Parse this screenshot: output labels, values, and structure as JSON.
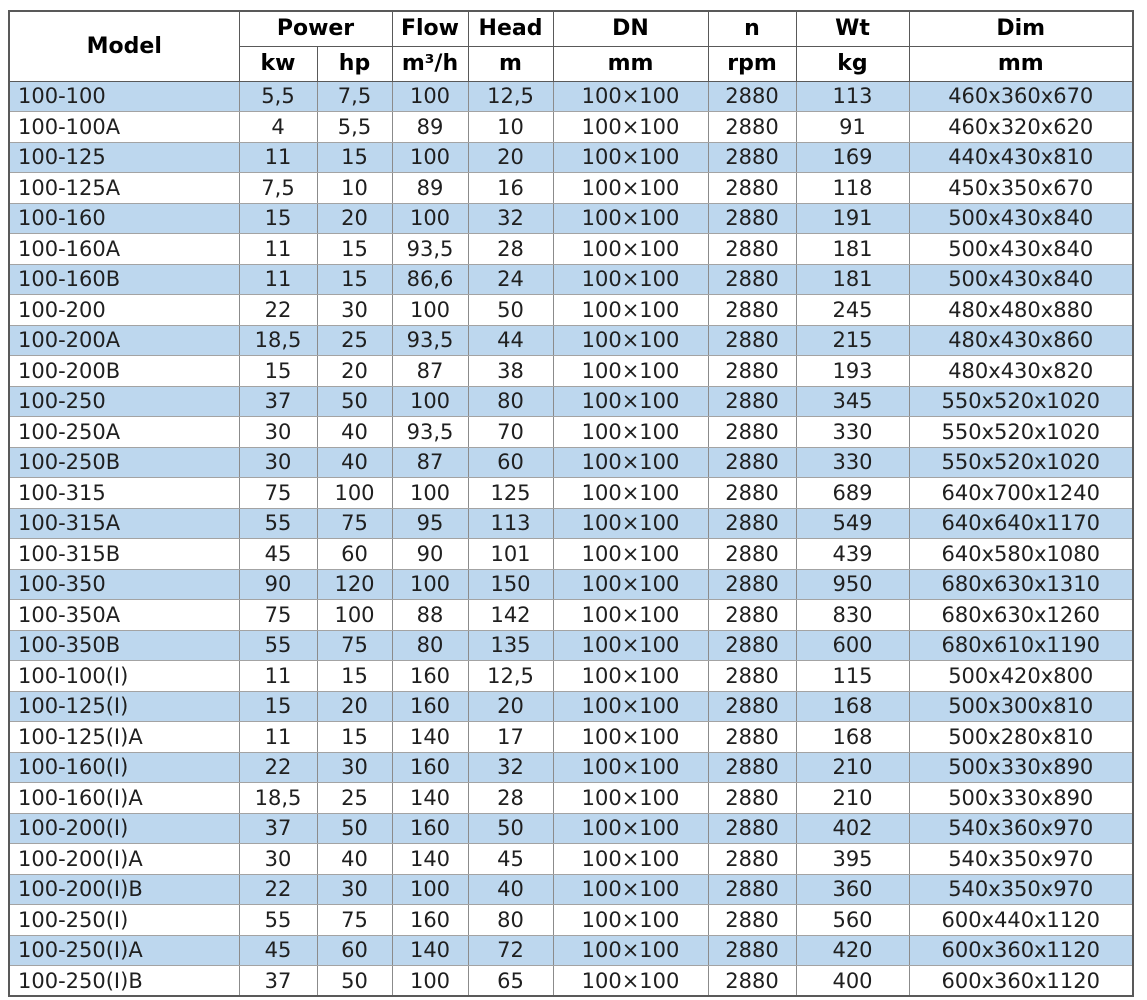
{
  "table": {
    "header": {
      "model": "Model",
      "power": "Power",
      "power_kw": "kw",
      "power_hp": "hp",
      "flow": "Flow",
      "flow_unit": "m³/h",
      "head": "Head",
      "head_unit": "m",
      "dn": "DN",
      "dn_unit": "mm",
      "n": "n",
      "n_unit": "rpm",
      "wt": "Wt",
      "wt_unit": "kg",
      "dim": "Dim",
      "dim_unit": "mm"
    },
    "columns": [
      "model",
      "power-kw",
      "power-hp",
      "flow",
      "head",
      "dn",
      "n",
      "wt",
      "dim"
    ],
    "rows": [
      [
        "100-100",
        "5,5",
        "7,5",
        "100",
        "12,5",
        "100×100",
        "2880",
        "113",
        "460x360x670"
      ],
      [
        "100-100A",
        "4",
        "5,5",
        "89",
        "10",
        "100×100",
        "2880",
        "91",
        "460x320x620"
      ],
      [
        "100-125",
        "11",
        "15",
        "100",
        "20",
        "100×100",
        "2880",
        "169",
        "440x430x810"
      ],
      [
        "100-125A",
        "7,5",
        "10",
        "89",
        "16",
        "100×100",
        "2880",
        "118",
        "450x350x670"
      ],
      [
        "100-160",
        "15",
        "20",
        "100",
        "32",
        "100×100",
        "2880",
        "191",
        "500x430x840"
      ],
      [
        "100-160A",
        "11",
        "15",
        "93,5",
        "28",
        "100×100",
        "2880",
        "181",
        "500x430x840"
      ],
      [
        "100-160B",
        "11",
        "15",
        "86,6",
        "24",
        "100×100",
        "2880",
        "181",
        "500x430x840"
      ],
      [
        "100-200",
        "22",
        "30",
        "100",
        "50",
        "100×100",
        "2880",
        "245",
        "480x480x880"
      ],
      [
        "100-200A",
        "18,5",
        "25",
        "93,5",
        "44",
        "100×100",
        "2880",
        "215",
        "480x430x860"
      ],
      [
        "100-200B",
        "15",
        "20",
        "87",
        "38",
        "100×100",
        "2880",
        "193",
        "480x430x820"
      ],
      [
        "100-250",
        "37",
        "50",
        "100",
        "80",
        "100×100",
        "2880",
        "345",
        "550x520x1020"
      ],
      [
        "100-250A",
        "30",
        "40",
        "93,5",
        "70",
        "100×100",
        "2880",
        "330",
        "550x520x1020"
      ],
      [
        "100-250B",
        "30",
        "40",
        "87",
        "60",
        "100×100",
        "2880",
        "330",
        "550x520x1020"
      ],
      [
        "100-315",
        "75",
        "100",
        "100",
        "125",
        "100×100",
        "2880",
        "689",
        "640x700x1240"
      ],
      [
        "100-315A",
        "55",
        "75",
        "95",
        "113",
        "100×100",
        "2880",
        "549",
        "640x640x1170"
      ],
      [
        "100-315B",
        "45",
        "60",
        "90",
        "101",
        "100×100",
        "2880",
        "439",
        "640x580x1080"
      ],
      [
        "100-350",
        "90",
        "120",
        "100",
        "150",
        "100×100",
        "2880",
        "950",
        "680x630x1310"
      ],
      [
        "100-350A",
        "75",
        "100",
        "88",
        "142",
        "100×100",
        "2880",
        "830",
        "680x630x1260"
      ],
      [
        "100-350B",
        "55",
        "75",
        "80",
        "135",
        "100×100",
        "2880",
        "600",
        "680x610x1190"
      ],
      [
        "100-100(I)",
        "11",
        "15",
        "160",
        "12,5",
        "100×100",
        "2880",
        "115",
        "500x420x800"
      ],
      [
        "100-125(I)",
        "15",
        "20",
        "160",
        "20",
        "100×100",
        "2880",
        "168",
        "500x300x810"
      ],
      [
        "100-125(I)A",
        "11",
        "15",
        "140",
        "17",
        "100×100",
        "2880",
        "168",
        "500x280x810"
      ],
      [
        "100-160(I)",
        "22",
        "30",
        "160",
        "32",
        "100×100",
        "2880",
        "210",
        "500x330x890"
      ],
      [
        "100-160(I)A",
        "18,5",
        "25",
        "140",
        "28",
        "100×100",
        "2880",
        "210",
        "500x330x890"
      ],
      [
        "100-200(I)",
        "37",
        "50",
        "160",
        "50",
        "100×100",
        "2880",
        "402",
        "540x360x970"
      ],
      [
        "100-200(I)A",
        "30",
        "40",
        "140",
        "45",
        "100×100",
        "2880",
        "395",
        "540x350x970"
      ],
      [
        "100-200(I)B",
        "22",
        "30",
        "100",
        "40",
        "100×100",
        "2880",
        "360",
        "540x350x970"
      ],
      [
        "100-250(I)",
        "55",
        "75",
        "160",
        "80",
        "100×100",
        "2880",
        "560",
        "600x440x1120"
      ],
      [
        "100-250(I)A",
        "45",
        "60",
        "140",
        "72",
        "100×100",
        "2880",
        "420",
        "600x360x1120"
      ],
      [
        "100-250(I)B",
        "37",
        "50",
        "100",
        "65",
        "100×100",
        "2880",
        "400",
        "600x360x1120"
      ]
    ]
  },
  "colors": {
    "rowalt": "#bdd7ee",
    "rowbase": "#ffffff",
    "grid": "#8b8b8b",
    "outer": "#595959",
    "text": "#1f1f1f"
  }
}
